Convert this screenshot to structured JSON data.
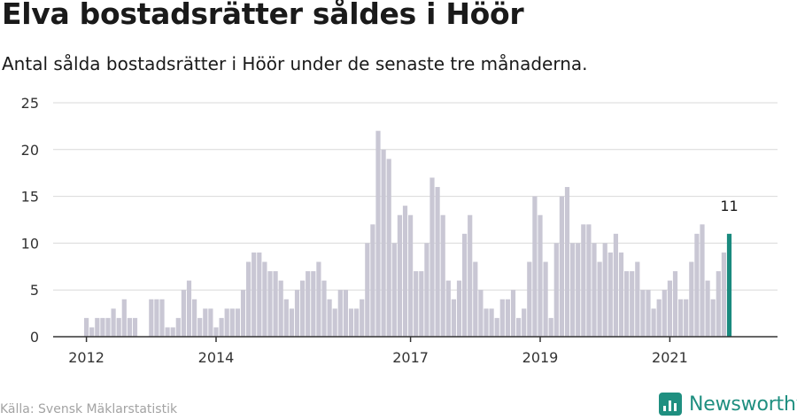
{
  "header": {
    "title": "Elva bostadsrätter såldes i Höör",
    "subtitle": "Antal sålda bostadsrätter i Höör under de senaste tre månaderna."
  },
  "footer": {
    "source": "Källa: Svensk Mäklarstatistik",
    "brand": "Newsworthy",
    "brand_icon": "newsworthy-logo-icon"
  },
  "colors": {
    "bar": "#c9c7d4",
    "highlight": "#1a8a7e",
    "grid": "#d9d9d9",
    "axis": "#333333"
  },
  "chart_data": {
    "type": "bar",
    "title": "Elva bostadsrätter såldes i Höör",
    "subtitle": "Antal sålda bostadsrätter i Höör under de senaste tre månaderna.",
    "ylim": [
      0,
      25
    ],
    "yticks": [
      0,
      5,
      10,
      15,
      20,
      25
    ],
    "xticks": [
      "2012",
      "2014",
      "2017",
      "2019",
      "2021"
    ],
    "grid": true,
    "values": [
      2,
      1,
      2,
      2,
      2,
      3,
      2,
      4,
      2,
      2,
      0,
      0,
      4,
      4,
      4,
      1,
      1,
      2,
      5,
      6,
      4,
      2,
      3,
      3,
      1,
      2,
      3,
      3,
      3,
      5,
      8,
      9,
      9,
      8,
      7,
      7,
      6,
      4,
      3,
      5,
      6,
      7,
      7,
      8,
      6,
      4,
      3,
      5,
      5,
      3,
      3,
      4,
      10,
      12,
      22,
      20,
      19,
      10,
      13,
      14,
      13,
      7,
      7,
      10,
      17,
      16,
      13,
      6,
      4,
      6,
      11,
      13,
      8,
      5,
      3,
      3,
      2,
      4,
      4,
      5,
      2,
      3,
      8,
      15,
      13,
      8,
      2,
      10,
      15,
      16,
      10,
      10,
      12,
      12,
      10,
      8,
      10,
      9,
      11,
      9,
      7,
      7,
      8,
      5,
      5,
      3,
      4,
      5,
      6,
      7,
      4,
      4,
      8,
      11,
      12,
      6,
      4,
      7,
      9,
      11
    ],
    "highlight_label": "11"
  }
}
